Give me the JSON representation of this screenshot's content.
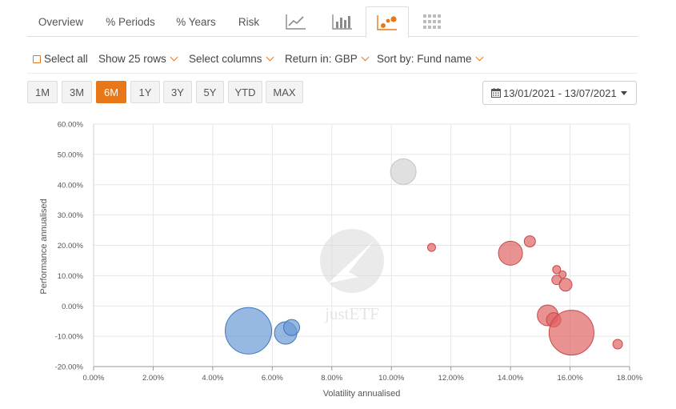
{
  "tabs": [
    {
      "label": "Overview"
    },
    {
      "label": "% Periods"
    },
    {
      "label": "% Years"
    },
    {
      "label": "Risk"
    },
    {
      "icon": "line-chart-icon"
    },
    {
      "icon": "bar-chart-icon"
    },
    {
      "icon": "bubble-chart-icon",
      "active": true
    },
    {
      "icon": "heatmap-grid-icon"
    }
  ],
  "toolbar": {
    "select_all": "Select all",
    "show_rows": "Show 25 rows",
    "select_columns": "Select columns",
    "return_in": "Return in: GBP",
    "sort_by": "Sort by: Fund name"
  },
  "periods": [
    "1M",
    "3M",
    "6M",
    "1Y",
    "3Y",
    "5Y",
    "YTD",
    "MAX"
  ],
  "active_period": "6M",
  "date_range": "13/01/2021 - 13/07/2021",
  "colors": {
    "accent": "#e8771a",
    "blue_bubble": "#6a9ad4",
    "red_bubble": "#e06464",
    "grey_bubble": "#d6d6d6"
  },
  "chart_data": {
    "type": "scatter",
    "xlabel": "Volatility annualised",
    "ylabel": "Performance annualised",
    "xlim": [
      0,
      18
    ],
    "ylim": [
      -20,
      60
    ],
    "x_ticks": [
      "0.00%",
      "2.00%",
      "4.00%",
      "6.00%",
      "8.00%",
      "10.00%",
      "12.00%",
      "14.00%",
      "16.00%",
      "18.00%"
    ],
    "y_ticks": [
      "-20.00%",
      "-10.00%",
      "0.00%",
      "10.00%",
      "20.00%",
      "30.00%",
      "40.00%",
      "50.00%",
      "60.00%"
    ],
    "grid": true,
    "watermark": "justETF",
    "series": [
      {
        "color": "blue",
        "points": [
          {
            "x": 5.2,
            "y": -8.2,
            "size": 29
          },
          {
            "x": 6.45,
            "y": -8.9,
            "size": 14
          },
          {
            "x": 6.65,
            "y": -7.1,
            "size": 10
          }
        ]
      },
      {
        "color": "grey",
        "points": [
          {
            "x": 10.4,
            "y": 44.3,
            "size": 16
          }
        ]
      },
      {
        "color": "red",
        "points": [
          {
            "x": 11.35,
            "y": 19.3,
            "size": 5
          },
          {
            "x": 14.0,
            "y": 17.4,
            "size": 15
          },
          {
            "x": 14.65,
            "y": 21.3,
            "size": 7
          },
          {
            "x": 15.55,
            "y": 12.0,
            "size": 5
          },
          {
            "x": 15.75,
            "y": 10.4,
            "size": 4.5
          },
          {
            "x": 15.55,
            "y": 8.6,
            "size": 6
          },
          {
            "x": 15.85,
            "y": 7.0,
            "size": 8
          },
          {
            "x": 15.25,
            "y": -3.1,
            "size": 13
          },
          {
            "x": 15.45,
            "y": -4.6,
            "size": 9
          },
          {
            "x": 16.05,
            "y": -8.8,
            "size": 28
          },
          {
            "x": 17.6,
            "y": -12.6,
            "size": 6
          }
        ]
      }
    ]
  }
}
